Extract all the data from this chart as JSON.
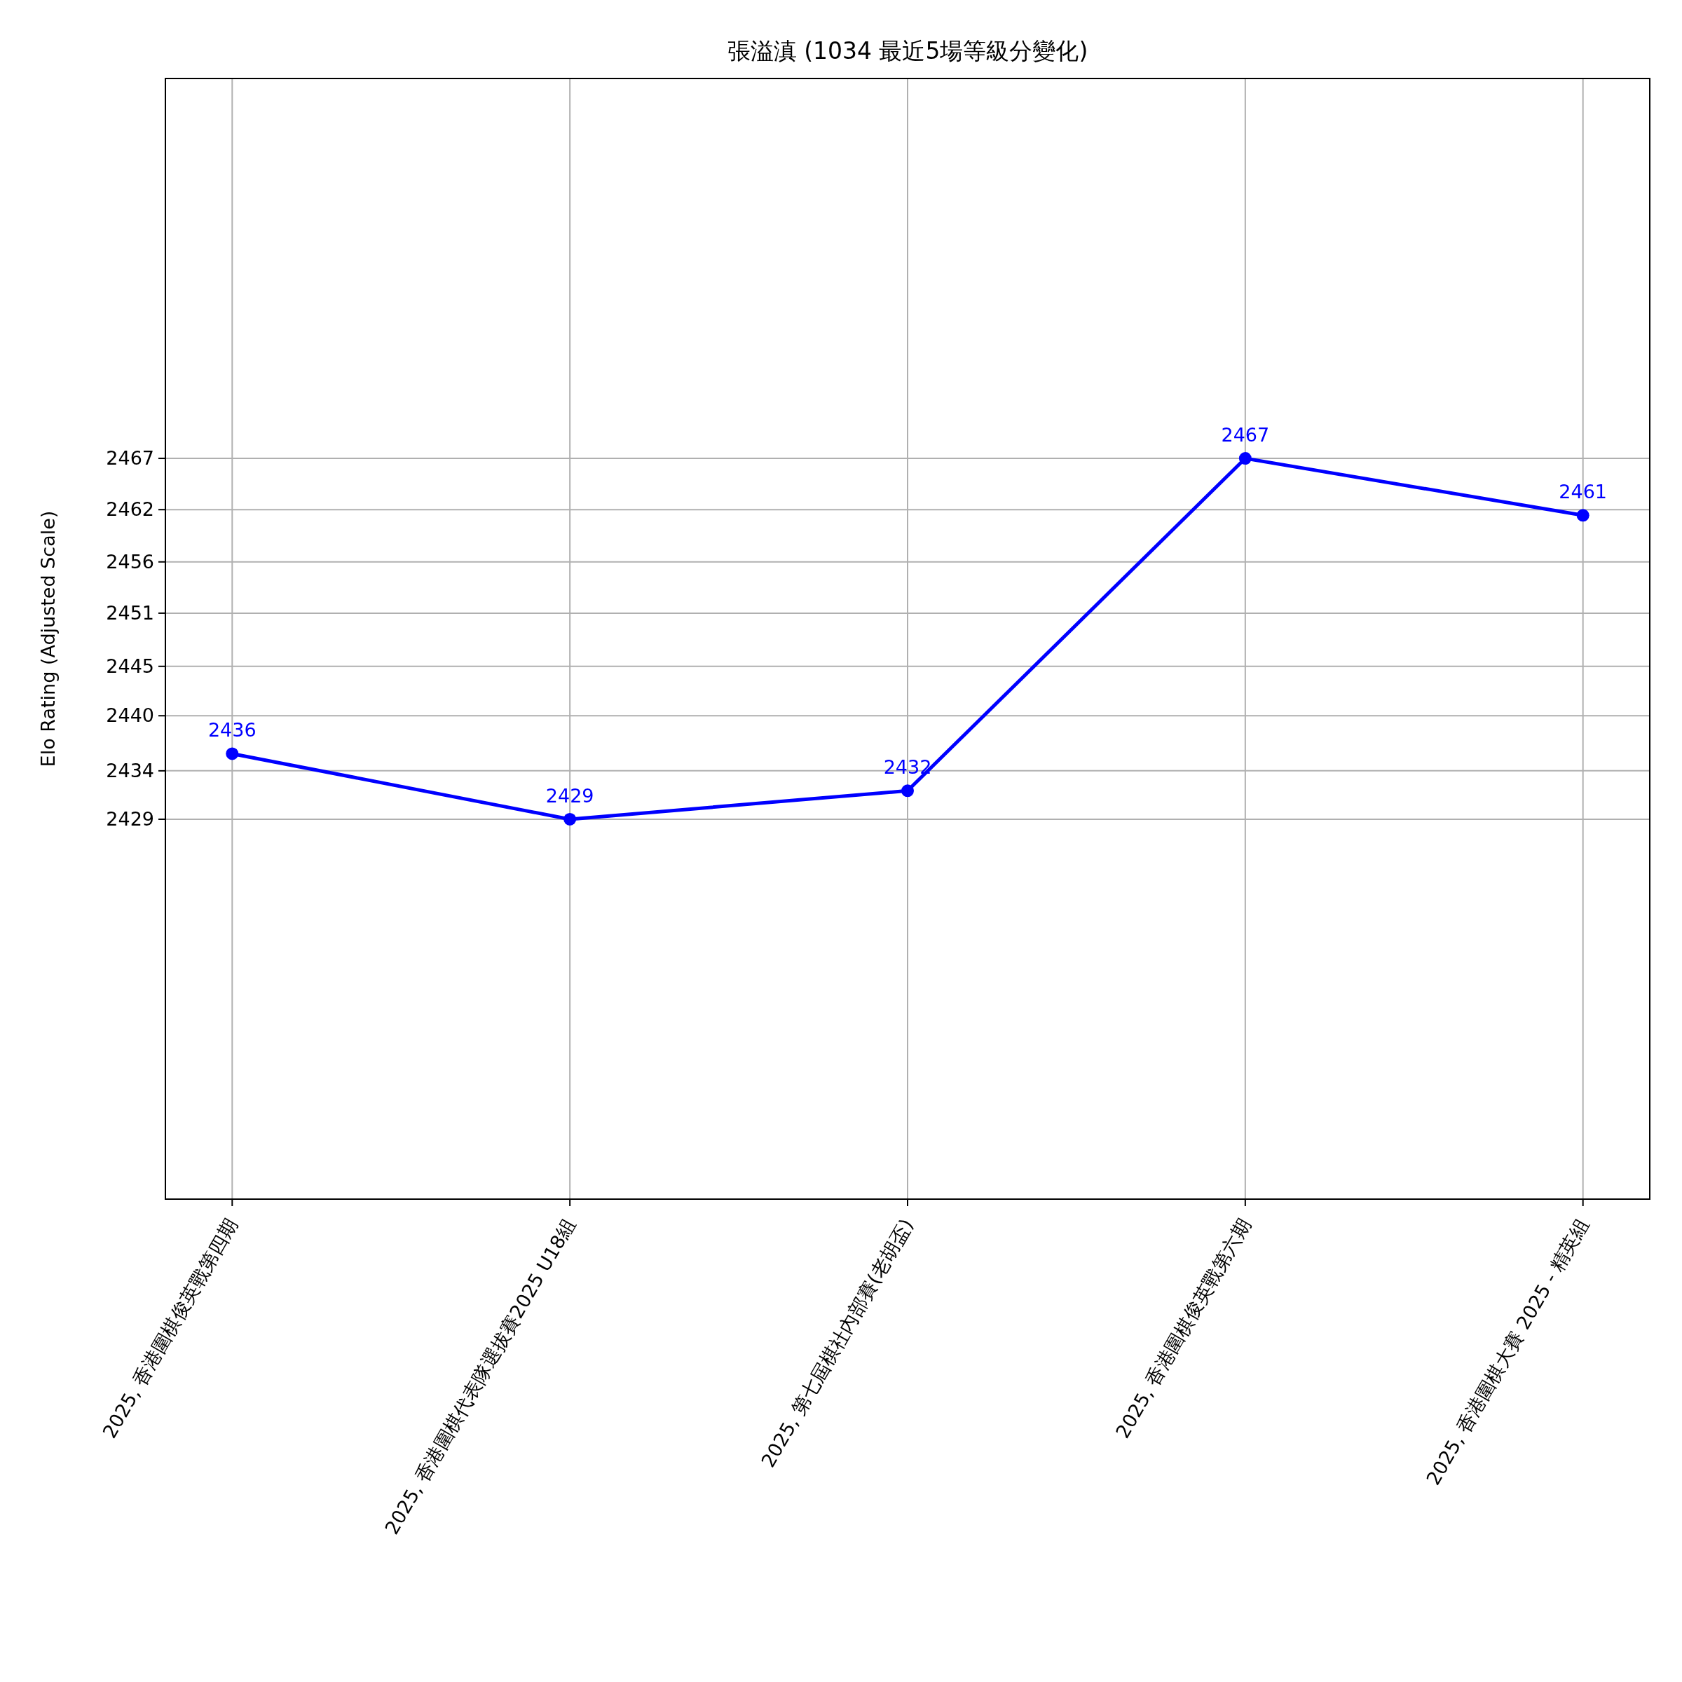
{
  "chart_data": {
    "type": "line",
    "title": "張溢滇 (1034 最近5場等級分變化)",
    "ylabel": "Elo Rating (Adjusted Scale)",
    "categories": [
      "2025, 香港圍棋俊英戰第四期",
      "2025, 香港圍棋代表隊選拔賽2025 U18組",
      "2025, 第七屆棋社內部賽(老胡盃)",
      "2025, 香港圍棋俊英戰第六期",
      "2025, 香港圍棋大賽 2025 - 精英組"
    ],
    "series": [
      {
        "color": "#0000ff",
        "values": [
          2436.2,
          2429.3,
          2432.3,
          2467.3,
          2461.3
        ],
        "value_labels": [
          "2436",
          "2429",
          "2432",
          "2467",
          "2461"
        ]
      }
    ],
    "ylim": [
      2389.3,
      2507.3
    ],
    "yticks": [
      {
        "value": 2429.3,
        "label": "2429"
      },
      {
        "value": 2434.4,
        "label": "2434"
      },
      {
        "value": 2440.2,
        "label": "2440"
      },
      {
        "value": 2445.4,
        "label": "2445"
      },
      {
        "value": 2451.0,
        "label": "2451"
      },
      {
        "value": 2456.4,
        "label": "2456"
      },
      {
        "value": 2461.9,
        "label": "2462"
      },
      {
        "value": 2467.3,
        "label": "2467"
      }
    ],
    "grid": true,
    "marker": "circle",
    "line_style": "solid"
  }
}
